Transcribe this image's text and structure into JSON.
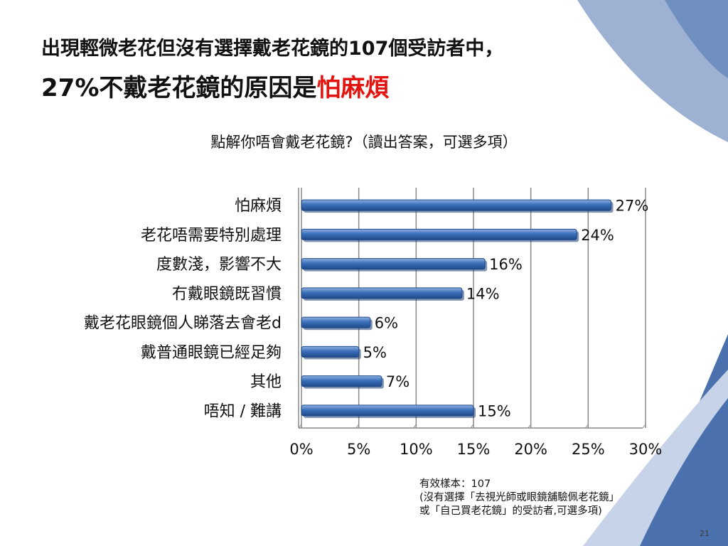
{
  "slide": {
    "title_line1": "出現輕微老花但沒有選擇戴老花鏡的107個受訪者中，",
    "title_line2_prefix": "27%不戴老花鏡的原因是",
    "title_line2_highlight": "怕麻煩",
    "question": "點解你唔會戴老花鏡?（讀出答案，可選多項）",
    "note_lines": [
      "有效樣本：107",
      "(沒有選擇「去視光師或眼鏡舖驗佩老花鏡」",
      "或「自己買老花鏡」的受訪者,可選多項)"
    ],
    "page_number": "21",
    "colors": {
      "bar": "#3a6fb8",
      "highlight": "#e3140f",
      "background_swoosh": "#4a70ad"
    }
  },
  "chart_data": {
    "type": "bar",
    "orientation": "horizontal",
    "categories": [
      "怕麻煩",
      "老花唔需要特別處理",
      "度數淺，影響不大",
      "冇戴眼鏡既習慣",
      "戴老花眼鏡個人睇落去會老d",
      "戴普通眼鏡已經足夠",
      "其他",
      "唔知 / 難講"
    ],
    "values": [
      27,
      24,
      16,
      14,
      6,
      5,
      7,
      15
    ],
    "value_labels": [
      "27%",
      "24%",
      "16%",
      "14%",
      "6%",
      "5%",
      "7%",
      "15%"
    ],
    "xlim": [
      0,
      30
    ],
    "x_ticks": [
      "0%",
      "5%",
      "10%",
      "15%",
      "20%",
      "25%",
      "30%"
    ],
    "grid": true,
    "legend": "none"
  }
}
